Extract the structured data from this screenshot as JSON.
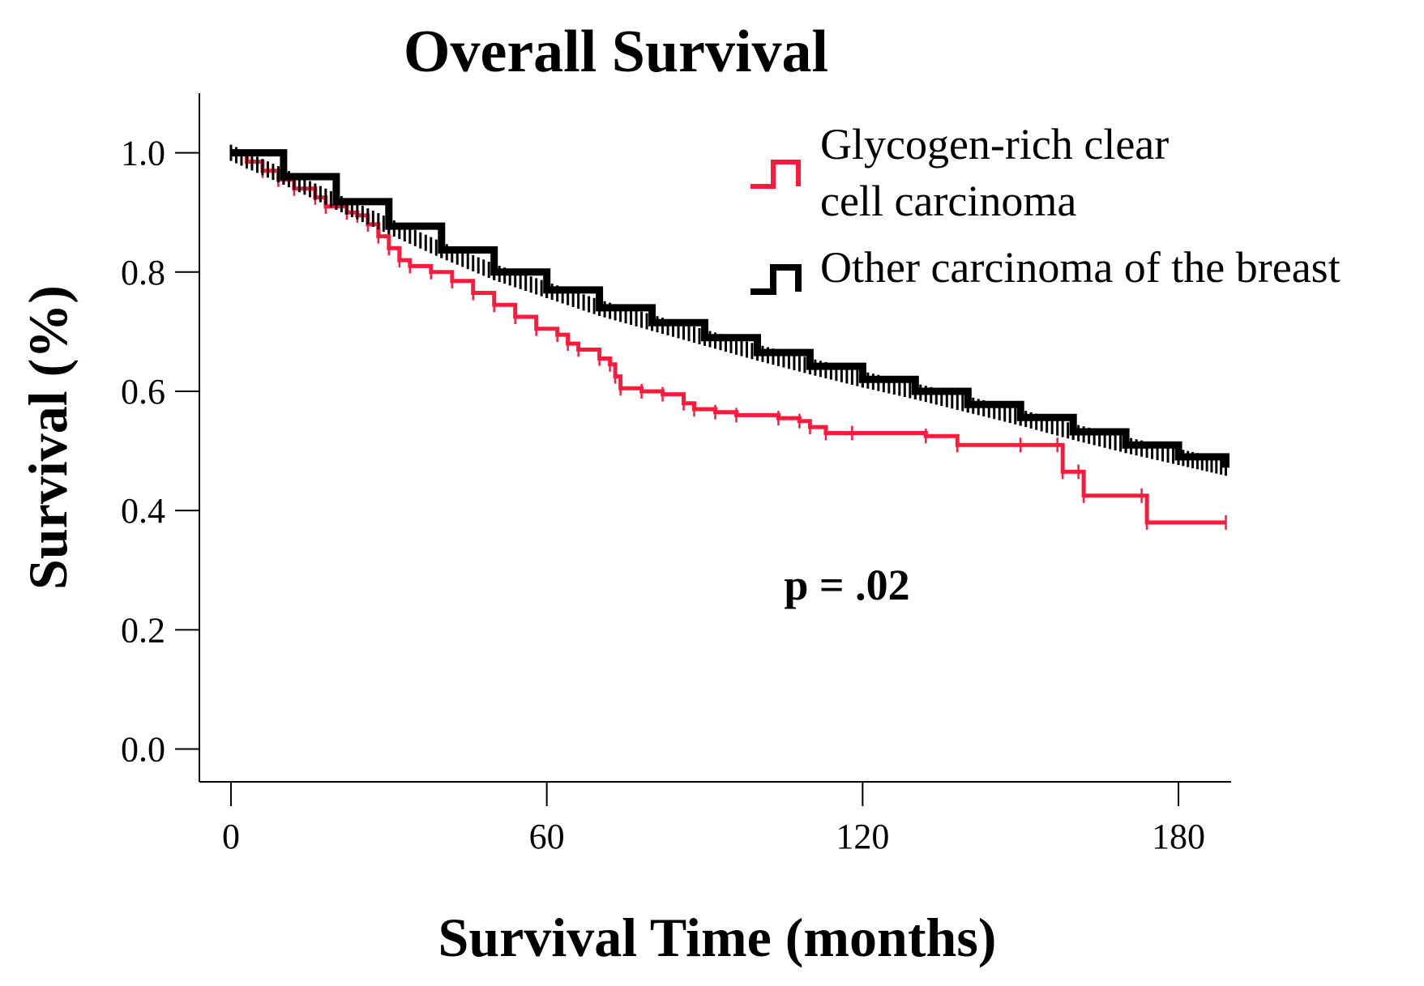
{
  "chart_data": {
    "type": "line",
    "subtype": "kaplan-meier",
    "title": "Overall Survival",
    "xlabel": "Survival Time (months)",
    "ylabel": "Survival (%)",
    "xlim": [
      -6,
      190
    ],
    "ylim": [
      -0.055,
      1.1
    ],
    "x_ticks": [
      0,
      60,
      120,
      180
    ],
    "x_tick_labels": [
      "0",
      "60",
      "120",
      "180"
    ],
    "y_ticks": [
      0.0,
      0.2,
      0.4,
      0.6,
      0.8,
      1.0
    ],
    "y_tick_labels": [
      "0.0",
      "0.2",
      "0.4",
      "0.6",
      "0.8",
      "1.0"
    ],
    "grid": false,
    "legend_position": "top-right",
    "annotation": "p = .02",
    "series": [
      {
        "name": "Glycogen-rich clear cell carcinoma",
        "legend_lines": [
          "Glycogen-rich clear",
          "cell carcinoma"
        ],
        "color": "#ff1a3c",
        "points": [
          [
            0,
            1.0
          ],
          [
            3,
            0.985
          ],
          [
            6,
            0.97
          ],
          [
            9,
            0.955
          ],
          [
            12,
            0.94
          ],
          [
            16,
            0.925
          ],
          [
            18,
            0.91
          ],
          [
            22,
            0.9
          ],
          [
            24,
            0.895
          ],
          [
            26,
            0.88
          ],
          [
            28,
            0.86
          ],
          [
            30,
            0.84
          ],
          [
            32,
            0.82
          ],
          [
            34,
            0.81
          ],
          [
            38,
            0.8
          ],
          [
            42,
            0.785
          ],
          [
            46,
            0.765
          ],
          [
            50,
            0.745
          ],
          [
            54,
            0.725
          ],
          [
            58,
            0.705
          ],
          [
            62,
            0.695
          ],
          [
            64,
            0.68
          ],
          [
            66,
            0.67
          ],
          [
            70,
            0.655
          ],
          [
            72,
            0.645
          ],
          [
            73,
            0.625
          ],
          [
            74,
            0.605
          ],
          [
            78,
            0.6
          ],
          [
            82,
            0.595
          ],
          [
            86,
            0.58
          ],
          [
            88,
            0.57
          ],
          [
            92,
            0.565
          ],
          [
            96,
            0.56
          ],
          [
            104,
            0.555
          ],
          [
            108,
            0.55
          ],
          [
            110,
            0.54
          ],
          [
            113,
            0.53
          ],
          [
            118,
            0.53
          ],
          [
            132,
            0.525
          ],
          [
            138,
            0.51
          ],
          [
            150,
            0.51
          ],
          [
            157,
            0.51
          ],
          [
            158,
            0.465
          ],
          [
            161,
            0.465
          ],
          [
            162,
            0.425
          ],
          [
            173,
            0.425
          ],
          [
            174,
            0.38
          ],
          [
            189,
            0.38
          ]
        ]
      },
      {
        "name": "Other carcinoma of the breast",
        "legend_lines": [
          "Other carcinoma of the breast"
        ],
        "color": "#000000",
        "points": [
          [
            0,
            1.0
          ],
          [
            10,
            0.96
          ],
          [
            20,
            0.918
          ],
          [
            30,
            0.877
          ],
          [
            40,
            0.837
          ],
          [
            50,
            0.8
          ],
          [
            60,
            0.77
          ],
          [
            70,
            0.74
          ],
          [
            80,
            0.715
          ],
          [
            90,
            0.69
          ],
          [
            100,
            0.665
          ],
          [
            110,
            0.642
          ],
          [
            120,
            0.62
          ],
          [
            130,
            0.6
          ],
          [
            140,
            0.578
          ],
          [
            150,
            0.556
          ],
          [
            160,
            0.532
          ],
          [
            170,
            0.51
          ],
          [
            180,
            0.49
          ],
          [
            189,
            0.472
          ]
        ]
      }
    ]
  }
}
